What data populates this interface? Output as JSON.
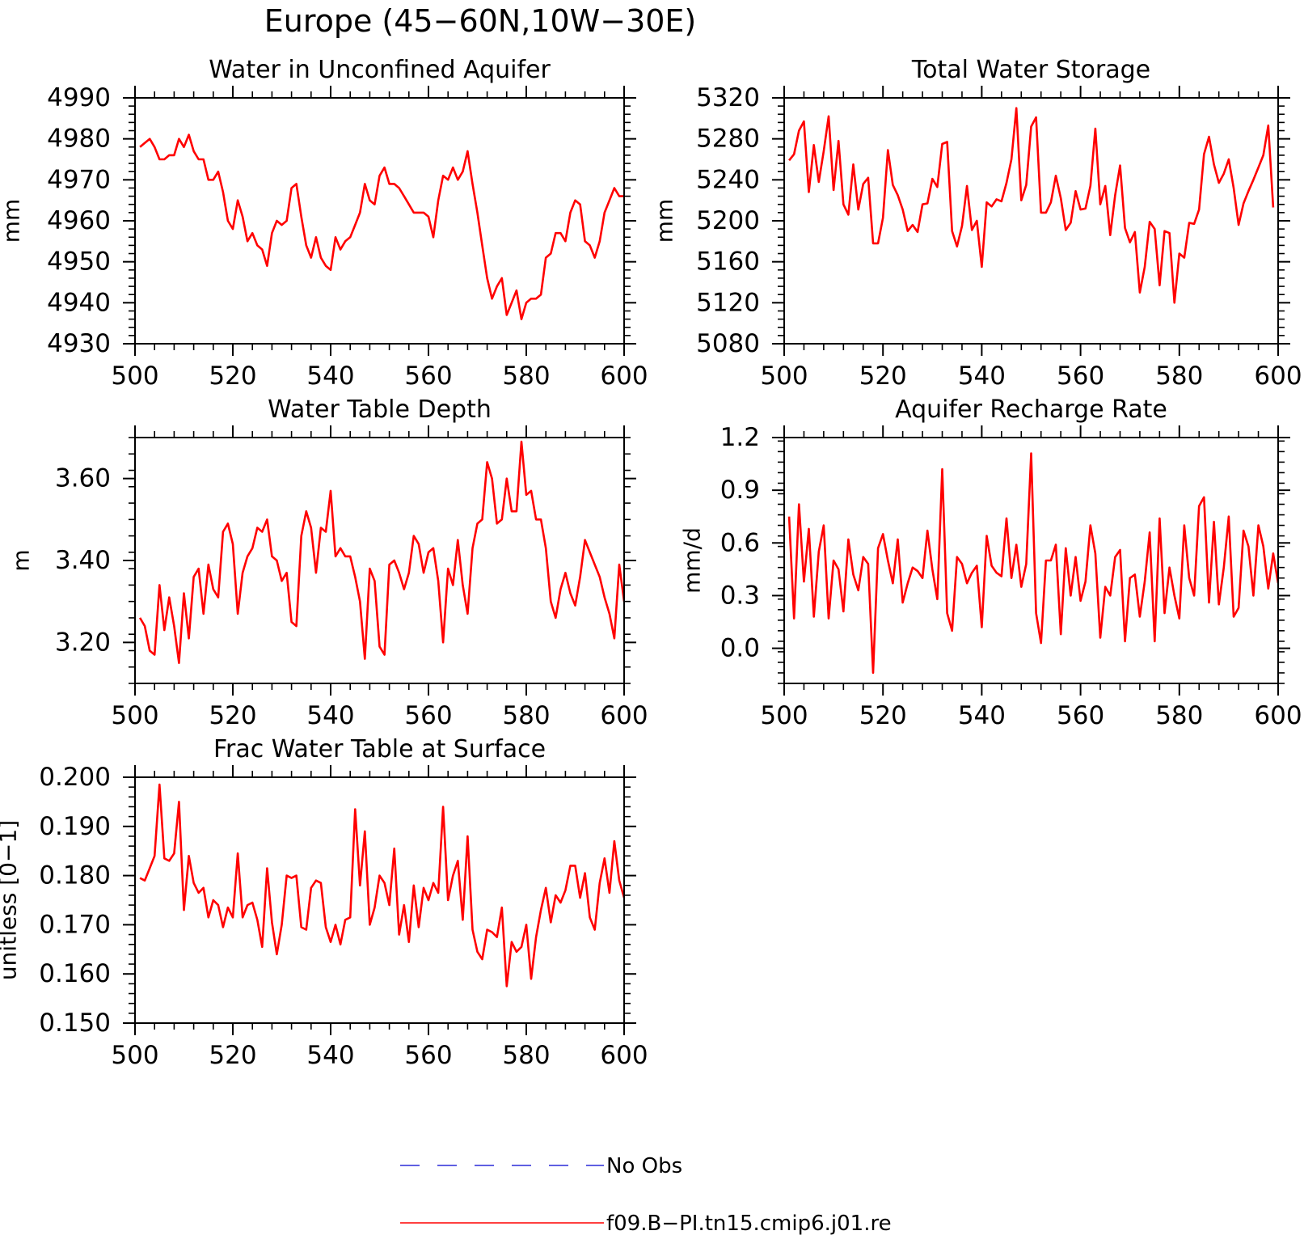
{
  "figure": {
    "title": "Europe (45−60N,10W−30E)"
  },
  "legend": {
    "entries": [
      {
        "label": "No Obs",
        "color": "#2b2bd8",
        "style": "dashed"
      },
      {
        "label": "f09.B−PI.tn15.cmip6.j01.re",
        "color": "#ff0000",
        "style": "solid"
      }
    ]
  },
  "chart_data": [
    {
      "type": "line",
      "title": "Water in Unconfined Aquifer",
      "xlabel": "",
      "ylabel": "mm",
      "xlim": [
        500,
        600
      ],
      "ylim": [
        4930,
        4990
      ],
      "xticks": [
        500,
        520,
        540,
        560,
        580,
        600
      ],
      "xtick_labels": [
        "500",
        "520",
        "540",
        "560",
        "580",
        "600"
      ],
      "yticks": [
        4930,
        4940,
        4950,
        4960,
        4970,
        4980,
        4990
      ],
      "ytick_labels": [
        "4930",
        "4940",
        "4950",
        "4960",
        "4970",
        "4980",
        "4990"
      ],
      "yminor_step": 2,
      "xstart": 501,
      "series": [
        {
          "color": "#ff0000",
          "values": [
            4978,
            4979,
            4980,
            4978,
            4975,
            4975,
            4976,
            4976,
            4980,
            4978,
            4981,
            4977,
            4975,
            4975,
            4970,
            4970,
            4972,
            4967,
            4960,
            4958,
            4965,
            4961,
            4955,
            4957,
            4954,
            4953,
            4949,
            4957,
            4960,
            4959,
            4960,
            4968,
            4969,
            4961,
            4954,
            4951,
            4956,
            4951,
            4949,
            4948,
            4956,
            4953,
            4955,
            4956,
            4959,
            4962,
            4969,
            4965,
            4964,
            4971,
            4973,
            4969,
            4969,
            4968,
            4966,
            4964,
            4962,
            4962,
            4962,
            4961,
            4956,
            4965,
            4971,
            4970,
            4973,
            4970,
            4972,
            4977,
            4969,
            4962,
            4954,
            4946,
            4941,
            4944,
            4946,
            4937,
            4940,
            4943,
            4936,
            4940,
            4941,
            4941,
            4942,
            4951,
            4952,
            4957,
            4957,
            4955,
            4962,
            4965,
            4964,
            4955,
            4954,
            4951,
            4955,
            4962,
            4965,
            4968,
            4966,
            4966
          ]
        }
      ]
    },
    {
      "type": "line",
      "title": "Total Water Storage",
      "xlabel": "",
      "ylabel": "mm",
      "xlim": [
        500,
        600
      ],
      "ylim": [
        5080,
        5320
      ],
      "xticks": [
        500,
        520,
        540,
        560,
        580,
        600
      ],
      "xtick_labels": [
        "500",
        "520",
        "540",
        "560",
        "580",
        "600"
      ],
      "yticks": [
        5080,
        5120,
        5160,
        5200,
        5240,
        5280,
        5320
      ],
      "ytick_labels": [
        "5080",
        "5120",
        "5160",
        "5200",
        "5240",
        "5280",
        "5320"
      ],
      "yminor_step": 8,
      "xstart": 501,
      "series": [
        {
          "color": "#ff0000",
          "values": [
            5259,
            5265,
            5288,
            5297,
            5228,
            5274,
            5238,
            5268,
            5302,
            5230,
            5278,
            5216,
            5206,
            5255,
            5211,
            5236,
            5242,
            5178,
            5178,
            5203,
            5269,
            5235,
            5225,
            5211,
            5190,
            5196,
            5189,
            5216,
            5217,
            5241,
            5233,
            5275,
            5277,
            5190,
            5175,
            5195,
            5234,
            5191,
            5200,
            5155,
            5218,
            5214,
            5221,
            5219,
            5237,
            5260,
            5310,
            5220,
            5235,
            5292,
            5301,
            5208,
            5208,
            5218,
            5244,
            5222,
            5191,
            5198,
            5229,
            5211,
            5212,
            5234,
            5290,
            5216,
            5234,
            5186,
            5225,
            5254,
            5193,
            5179,
            5189,
            5130,
            5155,
            5199,
            5192,
            5137,
            5190,
            5188,
            5120,
            5168,
            5164,
            5198,
            5197,
            5211,
            5265,
            5282,
            5255,
            5237,
            5246,
            5260,
            5232,
            5196,
            5217,
            5229,
            5240,
            5252,
            5264,
            5293,
            5213
          ]
        }
      ]
    },
    {
      "type": "line",
      "title": "Water Table Depth",
      "xlabel": "",
      "ylabel": "m",
      "xlim": [
        500,
        600
      ],
      "ylim": [
        3.1,
        3.7
      ],
      "xticks": [
        500,
        520,
        540,
        560,
        580,
        600
      ],
      "xtick_labels": [
        "500",
        "520",
        "540",
        "560",
        "580",
        "600"
      ],
      "yticks": [
        3.2,
        3.4,
        3.6
      ],
      "ytick_labels": [
        "3.20",
        "3.40",
        "3.60"
      ],
      "yminor_step": 0.04,
      "xstart": 501,
      "series": [
        {
          "color": "#ff0000",
          "values": [
            3.26,
            3.24,
            3.18,
            3.17,
            3.34,
            3.23,
            3.31,
            3.24,
            3.15,
            3.32,
            3.21,
            3.36,
            3.38,
            3.27,
            3.39,
            3.33,
            3.31,
            3.47,
            3.49,
            3.44,
            3.27,
            3.37,
            3.41,
            3.43,
            3.48,
            3.47,
            3.5,
            3.41,
            3.4,
            3.35,
            3.37,
            3.25,
            3.24,
            3.46,
            3.52,
            3.48,
            3.37,
            3.48,
            3.47,
            3.57,
            3.41,
            3.43,
            3.41,
            3.41,
            3.36,
            3.3,
            3.16,
            3.38,
            3.35,
            3.19,
            3.17,
            3.39,
            3.4,
            3.37,
            3.33,
            3.37,
            3.46,
            3.44,
            3.37,
            3.42,
            3.43,
            3.35,
            3.2,
            3.38,
            3.34,
            3.45,
            3.34,
            3.27,
            3.43,
            3.49,
            3.5,
            3.64,
            3.6,
            3.49,
            3.5,
            3.6,
            3.52,
            3.52,
            3.69,
            3.56,
            3.57,
            3.5,
            3.5,
            3.43,
            3.3,
            3.26,
            3.33,
            3.37,
            3.32,
            3.29,
            3.36,
            3.45,
            3.42,
            3.39,
            3.36,
            3.31,
            3.27,
            3.21,
            3.39,
            3.3
          ]
        }
      ]
    },
    {
      "type": "line",
      "title": "Aquifer Recharge Rate",
      "xlabel": "",
      "ylabel": "mm/d",
      "xlim": [
        500,
        600
      ],
      "ylim": [
        -0.2,
        1.2
      ],
      "xticks": [
        500,
        520,
        540,
        560,
        580,
        600
      ],
      "xtick_labels": [
        "500",
        "520",
        "540",
        "560",
        "580",
        "600"
      ],
      "yticks": [
        0,
        0.3,
        0.6,
        0.9,
        1.2
      ],
      "ytick_labels": [
        "0.0",
        "0.3",
        "0.6",
        "0.9",
        "1.2"
      ],
      "yminor_step": 0.06,
      "xstart": 501,
      "series": [
        {
          "color": "#ff0000",
          "values": [
            0.75,
            0.17,
            0.82,
            0.38,
            0.68,
            0.18,
            0.55,
            0.7,
            0.17,
            0.5,
            0.45,
            0.21,
            0.62,
            0.42,
            0.33,
            0.52,
            0.48,
            -0.14,
            0.57,
            0.65,
            0.5,
            0.37,
            0.62,
            0.26,
            0.37,
            0.46,
            0.44,
            0.4,
            0.67,
            0.45,
            0.28,
            1.02,
            0.2,
            0.1,
            0.52,
            0.48,
            0.37,
            0.43,
            0.47,
            0.12,
            0.64,
            0.47,
            0.43,
            0.41,
            0.74,
            0.4,
            0.59,
            0.35,
            0.48,
            1.11,
            0.2,
            0.03,
            0.5,
            0.5,
            0.59,
            0.08,
            0.57,
            0.3,
            0.52,
            0.27,
            0.38,
            0.7,
            0.54,
            0.06,
            0.35,
            0.3,
            0.52,
            0.56,
            0.04,
            0.4,
            0.42,
            0.18,
            0.38,
            0.66,
            0.04,
            0.74,
            0.2,
            0.46,
            0.3,
            0.17,
            0.7,
            0.4,
            0.3,
            0.81,
            0.86,
            0.26,
            0.72,
            0.25,
            0.46,
            0.75,
            0.18,
            0.23,
            0.67,
            0.58,
            0.3,
            0.7,
            0.58,
            0.34,
            0.54,
            0.37
          ]
        }
      ]
    },
    {
      "type": "line",
      "title": "Frac Water Table at Surface",
      "xlabel": "",
      "ylabel": "unitless [0−1]",
      "xlim": [
        500,
        600
      ],
      "ylim": [
        0.15,
        0.2
      ],
      "xticks": [
        500,
        520,
        540,
        560,
        580,
        600
      ],
      "xtick_labels": [
        "500",
        "520",
        "540",
        "560",
        "580",
        "600"
      ],
      "yticks": [
        0.15,
        0.16,
        0.17,
        0.18,
        0.19,
        0.2
      ],
      "ytick_labels": [
        "0.150",
        "0.160",
        "0.170",
        "0.180",
        "0.190",
        "0.200"
      ],
      "yminor_step": 0.002,
      "xstart": 501,
      "series": [
        {
          "color": "#ff0000",
          "values": [
            0.1795,
            0.179,
            0.1815,
            0.184,
            0.1985,
            0.1835,
            0.183,
            0.1845,
            0.195,
            0.173,
            0.184,
            0.1785,
            0.1765,
            0.1775,
            0.1715,
            0.175,
            0.174,
            0.1695,
            0.1735,
            0.1715,
            0.1845,
            0.1715,
            0.174,
            0.1745,
            0.171,
            0.1655,
            0.1815,
            0.1705,
            0.164,
            0.17,
            0.18,
            0.1795,
            0.18,
            0.1695,
            0.169,
            0.1775,
            0.179,
            0.1785,
            0.1695,
            0.1665,
            0.17,
            0.166,
            0.171,
            0.1715,
            0.1935,
            0.178,
            0.189,
            0.17,
            0.1735,
            0.18,
            0.1785,
            0.174,
            0.1855,
            0.168,
            0.174,
            0.1665,
            0.178,
            0.1695,
            0.1775,
            0.175,
            0.1785,
            0.1765,
            0.194,
            0.175,
            0.18,
            0.183,
            0.171,
            0.188,
            0.169,
            0.1645,
            0.163,
            0.169,
            0.1685,
            0.1675,
            0.1735,
            0.1575,
            0.1665,
            0.1645,
            0.1655,
            0.17,
            0.159,
            0.1675,
            0.173,
            0.1775,
            0.1705,
            0.176,
            0.1745,
            0.177,
            0.182,
            0.182,
            0.1755,
            0.1805,
            0.1715,
            0.169,
            0.1785,
            0.1835,
            0.1765,
            0.187,
            0.179,
            0.1755
          ]
        }
      ]
    }
  ]
}
